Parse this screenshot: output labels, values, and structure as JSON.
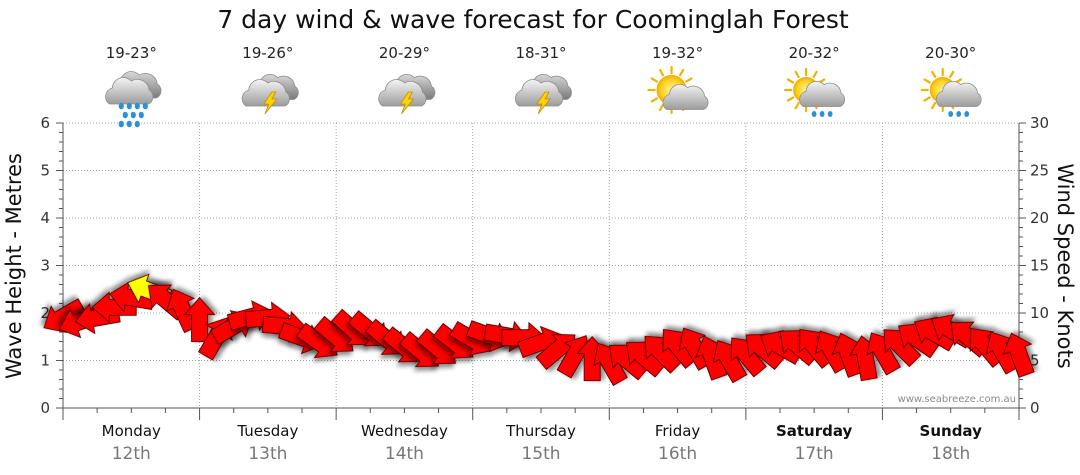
{
  "title": "7 day wind & wave forecast for Coominglah Forest",
  "watermark": "www.seabreeze.com.au",
  "chart_data": {
    "type": "line",
    "y_left": {
      "label": "Wave Height - Metres",
      "ticks": [
        "0",
        "1",
        "2",
        "3",
        "4",
        "5",
        "6"
      ],
      "range": [
        0,
        6
      ]
    },
    "y_right": {
      "label": "Wind Speed - Knots",
      "ticks": [
        "0",
        "5",
        "10",
        "15",
        "20",
        "25",
        "30"
      ],
      "range": [
        0,
        30
      ]
    },
    "grid": true,
    "days": [
      {
        "name": "Monday",
        "date": "12th",
        "bold": false,
        "temp": "19-23°",
        "weather": "rain-icon"
      },
      {
        "name": "Tuesday",
        "date": "13th",
        "bold": false,
        "temp": "19-26°",
        "weather": "thunderstorm-icon"
      },
      {
        "name": "Wednesday",
        "date": "14th",
        "bold": false,
        "temp": "20-29°",
        "weather": "thunderstorm-icon"
      },
      {
        "name": "Thursday",
        "date": "15th",
        "bold": false,
        "temp": "18-31°",
        "weather": "thunderstorm-icon"
      },
      {
        "name": "Friday",
        "date": "16th",
        "bold": false,
        "temp": "19-32°",
        "weather": "partly-cloudy-icon"
      },
      {
        "name": "Saturday",
        "date": "17th",
        "bold": true,
        "temp": "20-32°",
        "weather": "sun-showers-icon"
      },
      {
        "name": "Sunday",
        "date": "18th",
        "bold": true,
        "temp": "20-30°",
        "weather": "sun-showers-icon"
      }
    ],
    "series": [
      {
        "name": "Wind Speed",
        "unit": "knots",
        "color": "#ff0000",
        "highlight_color": "#ffff00",
        "highlight_threshold": 12,
        "x_day": [
          0,
          0.125,
          0.25,
          0.375,
          0.5,
          0.625,
          0.75,
          0.875,
          1,
          1.125,
          1.25,
          1.375,
          1.5,
          1.625,
          1.75,
          1.875,
          2,
          2.125,
          2.25,
          2.375,
          2.5,
          2.625,
          2.75,
          2.875,
          3,
          3.125,
          3.25,
          3.375,
          3.5,
          3.625,
          3.75,
          3.875,
          4,
          4.125,
          4.25,
          4.375,
          4.5,
          4.625,
          4.75,
          4.875,
          5,
          5.125,
          5.25,
          5.375,
          5.5,
          5.625,
          5.75,
          5.875,
          6,
          6.125,
          6.25,
          6.375,
          6.5,
          6.625,
          6.75,
          6.875,
          7
        ],
        "values": [
          9.6,
          9.1,
          9.5,
          10.6,
          11.6,
          12.4,
          11.4,
          10.4,
          9.3,
          7.5,
          8.6,
          9.6,
          9.5,
          8.6,
          7.4,
          6.9,
          7.5,
          8.2,
          8.1,
          7.2,
          6.4,
          5.9,
          6.2,
          6.8,
          7.2,
          7.6,
          7.6,
          7.4,
          6.9,
          6.2,
          5.6,
          5.2,
          4.8,
          5.1,
          5.4,
          5.9,
          6.5,
          6.4,
          5.4,
          5.1,
          5.6,
          6.2,
          6.5,
          6.6,
          6.5,
          6.1,
          5.7,
          5.3,
          5.9,
          6.6,
          7.3,
          7.9,
          8.2,
          7.5,
          6.6,
          6.0,
          5.7
        ],
        "directions": [
          150,
          160,
          170,
          180,
          190,
          200,
          220,
          245,
          270,
          300,
          330,
          345,
          355,
          5,
          20,
          35,
          40,
          42,
          40,
          40,
          40,
          40,
          40,
          38,
          30,
          20,
          10,
          0,
          340,
          320,
          300,
          270,
          240,
          220,
          220,
          225,
          230,
          240,
          250,
          240,
          230,
          220,
          210,
          220,
          230,
          240,
          250,
          260,
          240,
          225,
          215,
          210,
          210,
          220,
          230,
          240,
          250
        ]
      }
    ]
  }
}
